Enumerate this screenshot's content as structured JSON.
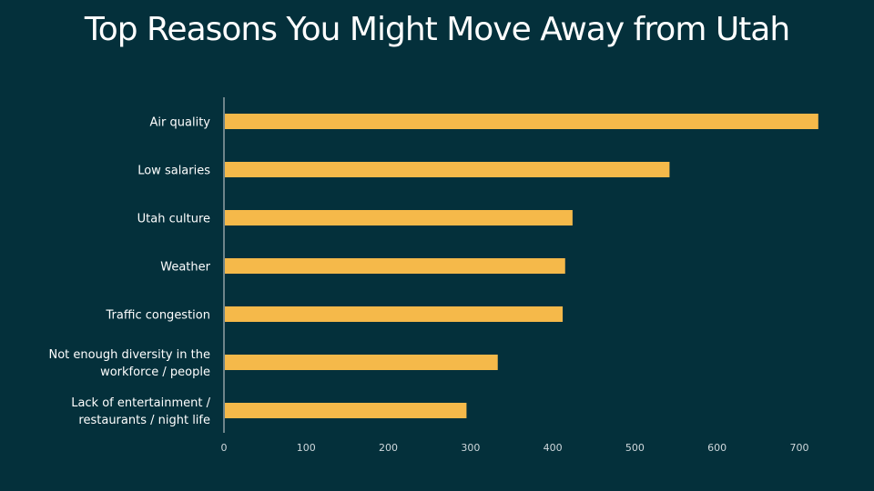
{
  "chart_data": {
    "type": "bar",
    "orientation": "horizontal",
    "title": "Top Reasons You Might Move Away from Utah",
    "categories": [
      "Air quality",
      "Low salaries",
      "Utah culture",
      "Weather",
      "Traffic congestion",
      "Not enough diversity in the workforce / people",
      "Lack of entertainment / restaurants / night life"
    ],
    "category_lines": [
      [
        "Air quality"
      ],
      [
        "Low salaries"
      ],
      [
        "Utah culture"
      ],
      [
        "Weather"
      ],
      [
        "Traffic congestion"
      ],
      [
        "Not enough diversity in the",
        "workforce / people"
      ],
      [
        "Lack of entertainment /",
        "restaurants / night life"
      ]
    ],
    "values": [
      722,
      541,
      423,
      414,
      411,
      332,
      294
    ],
    "xlim": [
      0,
      700
    ],
    "xticks": [
      "0",
      "100",
      "200",
      "300",
      "400",
      "500",
      "600",
      "700"
    ],
    "bar_color": "#f5b94a",
    "grid": false
  }
}
